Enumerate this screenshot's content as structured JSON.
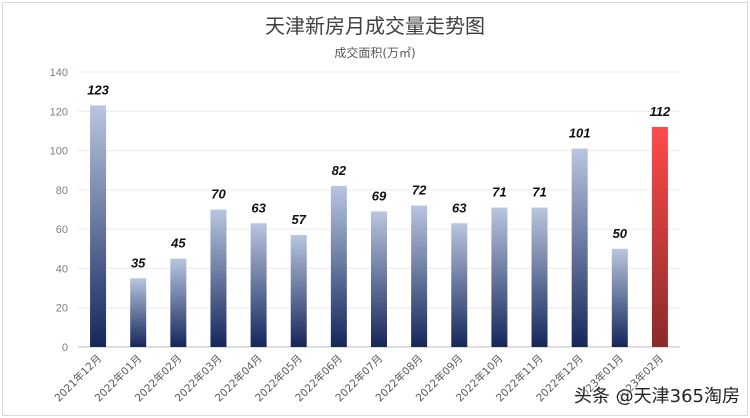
{
  "chart_data": {
    "type": "bar",
    "title": "天津新房月成交量走势图",
    "subtitle": "成交面积(万㎡)",
    "categories": [
      "2021年12月",
      "2022年01月",
      "2022年02月",
      "2022年03月",
      "2022年04月",
      "2022年05月",
      "2022年06月",
      "2022年07月",
      "2022年08月",
      "2022年09月",
      "2022年10月",
      "2022年11月",
      "2022年12月",
      "2023年01月",
      "2023年02月"
    ],
    "values": [
      123,
      35,
      45,
      70,
      63,
      57,
      82,
      69,
      72,
      63,
      71,
      71,
      101,
      50,
      112
    ],
    "data_labels": [
      "123",
      "35",
      "45",
      "70",
      "63",
      "57",
      "82",
      "69",
      "72",
      "63",
      "71",
      "71",
      "101",
      "50",
      "112"
    ],
    "ylim": [
      0,
      140
    ],
    "yticks": [
      0,
      20,
      40,
      60,
      80,
      100,
      120,
      140
    ],
    "ytick_labels": [
      "0",
      "20",
      "40",
      "60",
      "80",
      "100",
      "120",
      "140"
    ],
    "grid": true,
    "legend": "none",
    "colors": {
      "bar_top": "#b8c6e0",
      "bar_bottom": "#15265a",
      "highlight_top": "#ff4a4a",
      "highlight_bottom": "#8a2a2a",
      "highlight_index": 14
    }
  },
  "watermark": "头条 @天津365淘房"
}
